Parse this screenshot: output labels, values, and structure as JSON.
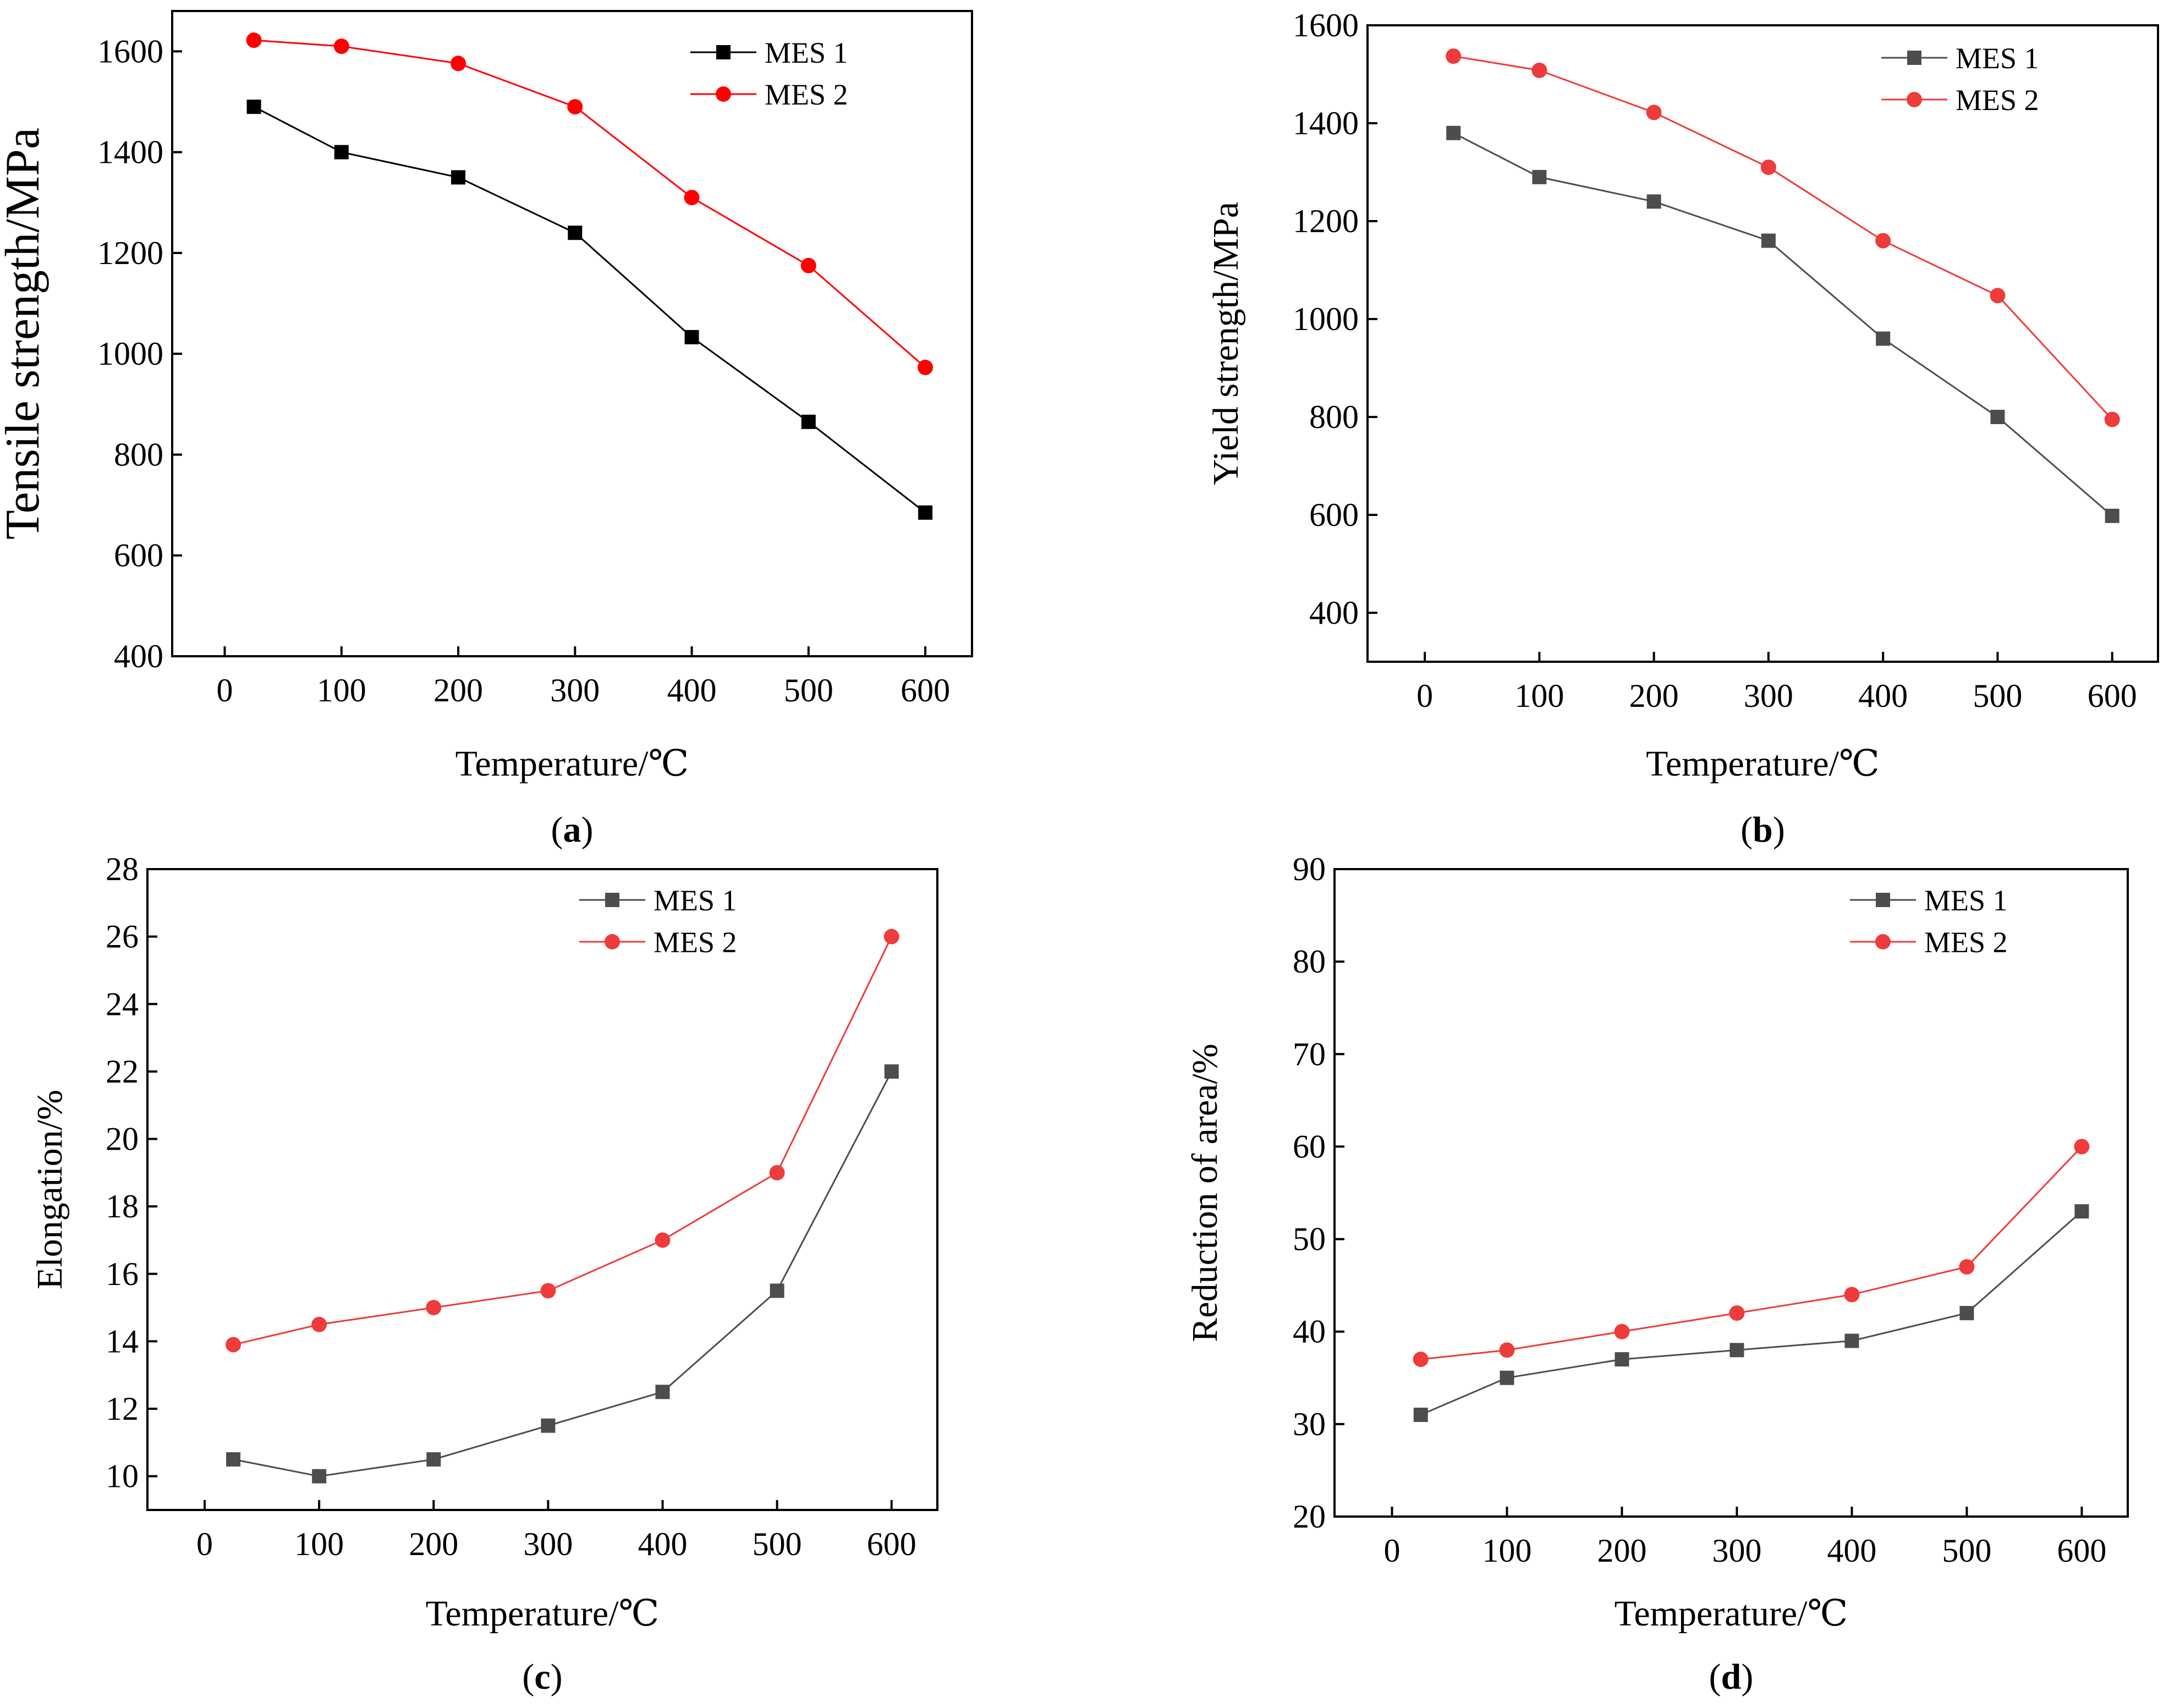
{
  "chart_data": [
    {
      "id": "a",
      "type": "line",
      "panel_label": "a",
      "title": "",
      "xlabel": "Temperature/℃",
      "ylabel": "Tensile strength/MPa",
      "xlim": [
        -45,
        640
      ],
      "ylim": [
        400,
        1680
      ],
      "xticks": [
        0,
        100,
        200,
        300,
        400,
        500,
        600
      ],
      "yticks": [
        400,
        600,
        800,
        1000,
        1200,
        1400,
        1600
      ],
      "legend_position": "top-right",
      "series": [
        {
          "name": "MES 1",
          "marker": "square",
          "color": "#000000",
          "x": [
            25,
            100,
            200,
            300,
            400,
            500,
            600
          ],
          "y": [
            1490,
            1400,
            1350,
            1240,
            1033,
            865,
            685
          ]
        },
        {
          "name": "MES 2",
          "marker": "circle",
          "color": "#ff0000",
          "x": [
            25,
            100,
            200,
            300,
            400,
            500,
            600
          ],
          "y": [
            1622,
            1610,
            1576,
            1490,
            1310,
            1175,
            973
          ]
        }
      ]
    },
    {
      "id": "b",
      "type": "line",
      "panel_label": "b",
      "title": "",
      "xlabel": "Temperature/℃",
      "ylabel": "Yield strength/MPa",
      "xlim": [
        -50,
        640
      ],
      "ylim": [
        300,
        1600
      ],
      "xticks": [
        0,
        100,
        200,
        300,
        400,
        500,
        600
      ],
      "yticks": [
        400,
        600,
        800,
        1000,
        1200,
        1400,
        1600
      ],
      "legend_position": "top-right",
      "series": [
        {
          "name": "MES 1",
          "marker": "square",
          "color": "#4d4d4d",
          "x": [
            25,
            100,
            200,
            300,
            400,
            500,
            600
          ],
          "y": [
            1380,
            1290,
            1240,
            1160,
            960,
            800,
            598
          ]
        },
        {
          "name": "MES 2",
          "marker": "circle",
          "color": "#ee3b3b",
          "x": [
            25,
            100,
            200,
            300,
            400,
            500,
            600
          ],
          "y": [
            1537,
            1508,
            1422,
            1310,
            1160,
            1048,
            795
          ]
        }
      ]
    },
    {
      "id": "c",
      "type": "line",
      "panel_label": "c",
      "title": "",
      "xlabel": "Temperature/℃",
      "ylabel": "Elongation/%",
      "xlim": [
        -50,
        640
      ],
      "ylim": [
        9,
        28
      ],
      "xticks": [
        0,
        100,
        200,
        300,
        400,
        500,
        600
      ],
      "yticks": [
        10,
        12,
        14,
        16,
        18,
        20,
        22,
        24,
        26,
        28
      ],
      "legend_position": "top-right",
      "series": [
        {
          "name": "MES 1",
          "marker": "square",
          "color": "#4d4d4d",
          "x": [
            25,
            100,
            200,
            300,
            400,
            500,
            600
          ],
          "y": [
            10.5,
            10.0,
            10.5,
            11.5,
            12.5,
            15.5,
            22.0
          ]
        },
        {
          "name": "MES 2",
          "marker": "circle",
          "color": "#ee3b3b",
          "x": [
            25,
            100,
            200,
            300,
            400,
            500,
            600
          ],
          "y": [
            13.9,
            14.5,
            15.0,
            15.5,
            17.0,
            19.0,
            26.0
          ]
        }
      ]
    },
    {
      "id": "d",
      "type": "line",
      "panel_label": "d",
      "title": "",
      "xlabel": "Temperature/℃",
      "ylabel": "Reduction of area/%",
      "xlim": [
        -50,
        640
      ],
      "ylim": [
        20,
        90
      ],
      "xticks": [
        0,
        100,
        200,
        300,
        400,
        500,
        600
      ],
      "yticks": [
        20,
        30,
        40,
        50,
        60,
        70,
        80,
        90
      ],
      "legend_position": "top-right",
      "series": [
        {
          "name": "MES 1",
          "marker": "square",
          "color": "#4d4d4d",
          "x": [
            25,
            100,
            200,
            300,
            400,
            500,
            600
          ],
          "y": [
            31,
            35,
            37,
            38,
            39,
            42,
            53
          ]
        },
        {
          "name": "MES 2",
          "marker": "circle",
          "color": "#ee3b3b",
          "x": [
            25,
            100,
            200,
            300,
            400,
            500,
            600
          ],
          "y": [
            37,
            38,
            40,
            42,
            44,
            47,
            60
          ]
        }
      ]
    }
  ]
}
